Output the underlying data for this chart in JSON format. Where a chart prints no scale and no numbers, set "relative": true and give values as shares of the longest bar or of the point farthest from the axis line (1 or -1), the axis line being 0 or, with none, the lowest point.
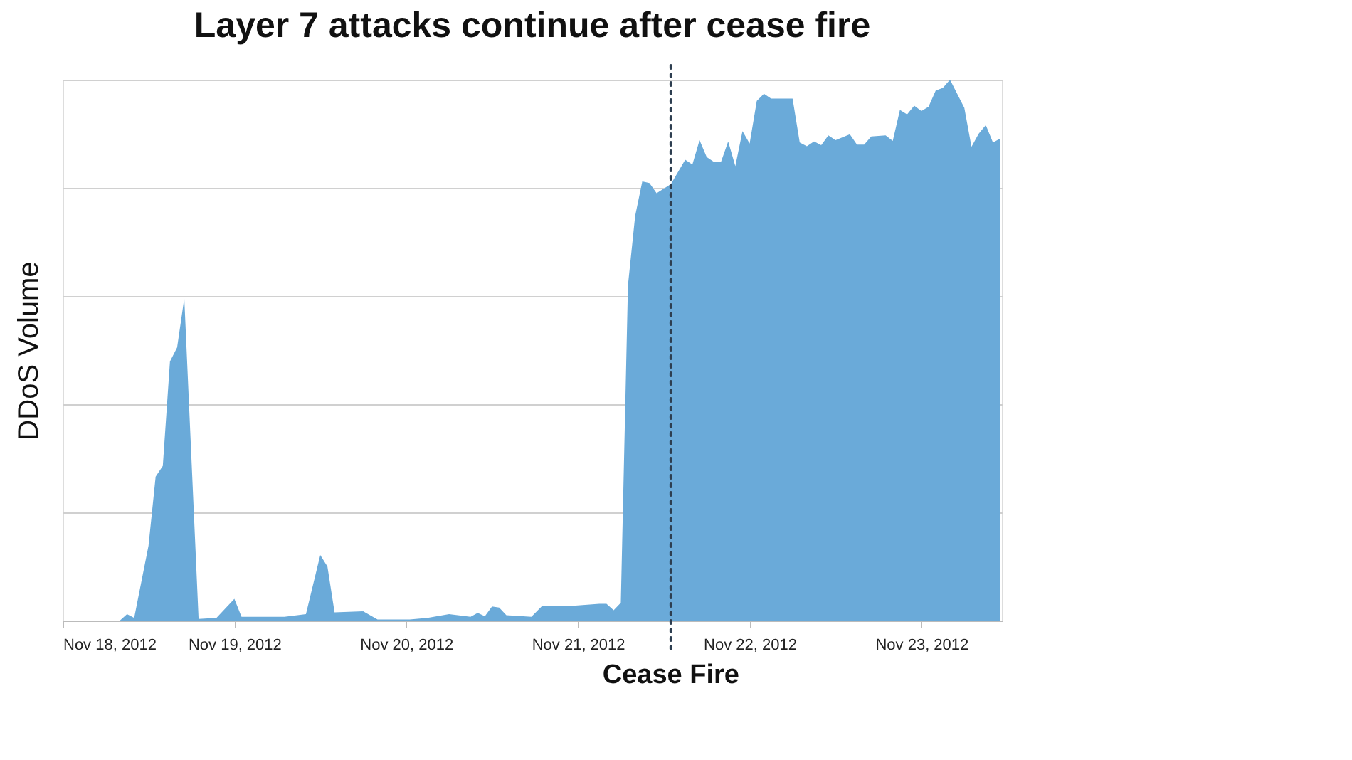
{
  "chart_data": {
    "type": "area",
    "title": "Layer 7 attacks continue after cease fire",
    "ylabel": "DDoS Volume",
    "relative": true,
    "grid": "y",
    "x": [
      "2012-11-18T00:00",
      "2012-11-18T08:00",
      "2012-11-18T09:00",
      "2012-11-18T10:00",
      "2012-11-18T12:00",
      "2012-11-18T13:00",
      "2012-11-18T14:00",
      "2012-11-18T15:00",
      "2012-11-18T16:00",
      "2012-11-18T17:00",
      "2012-11-18T19:00",
      "2012-11-18T21:30",
      "2012-11-19T00:00",
      "2012-11-19T01:00",
      "2012-11-19T07:00",
      "2012-11-19T10:00",
      "2012-11-19T12:00",
      "2012-11-19T13:00",
      "2012-11-19T14:00",
      "2012-11-19T18:00",
      "2012-11-19T20:00",
      "2012-11-20T00:30",
      "2012-11-20T03:00",
      "2012-11-20T06:00",
      "2012-11-20T09:00",
      "2012-11-20T10:00",
      "2012-11-20T11:00",
      "2012-11-20T12:00",
      "2012-11-20T13:00",
      "2012-11-20T14:00",
      "2012-11-20T17:30",
      "2012-11-20T19:00",
      "2012-11-20T23:00",
      "2012-11-21T03:00",
      "2012-11-21T04:00",
      "2012-11-21T05:00",
      "2012-11-21T06:00",
      "2012-11-21T07:00",
      "2012-11-21T08:00",
      "2012-11-21T09:00",
      "2012-11-21T10:00",
      "2012-11-21T11:00",
      "2012-11-21T13:00",
      "2012-11-21T15:00",
      "2012-11-21T16:00",
      "2012-11-21T17:00",
      "2012-11-21T18:00",
      "2012-11-21T19:00",
      "2012-11-21T20:00",
      "2012-11-21T21:00",
      "2012-11-21T22:00",
      "2012-11-21T23:00",
      "2012-11-22T00:00",
      "2012-11-22T01:00",
      "2012-11-22T02:00",
      "2012-11-22T03:00",
      "2012-11-22T06:00",
      "2012-11-22T07:00",
      "2012-11-22T08:00",
      "2012-11-22T09:00",
      "2012-11-22T10:00",
      "2012-11-22T11:00",
      "2012-11-22T12:00",
      "2012-11-22T14:00",
      "2012-11-22T15:00",
      "2012-11-22T16:00",
      "2012-11-22T17:00",
      "2012-11-22T19:00",
      "2012-11-22T20:00",
      "2012-11-22T21:00",
      "2012-11-22T22:00",
      "2012-11-22T23:00",
      "2012-11-23T00:00",
      "2012-11-23T01:00",
      "2012-11-23T02:00",
      "2012-11-23T03:00",
      "2012-11-23T04:00",
      "2012-11-23T06:00",
      "2012-11-23T07:00",
      "2012-11-23T08:00",
      "2012-11-23T09:00",
      "2012-11-23T10:00",
      "2012-11-23T11:00"
    ],
    "series": [
      {
        "color": "#6aaad9",
        "values": [
          0,
          0,
          0.012,
          0.005,
          0.138,
          0.266,
          0.286,
          0.479,
          0.505,
          0.596,
          0.003,
          0.005,
          0.04,
          0.007,
          0.007,
          0.012,
          0.121,
          0.1,
          0.015,
          0.017,
          0.002,
          0.002,
          0.005,
          0.012,
          0.007,
          0.014,
          0.008,
          0.026,
          0.024,
          0.01,
          0.007,
          0.027,
          0.027,
          0.031,
          0.031,
          0.019,
          0.033,
          0.62,
          0.748,
          0.812,
          0.809,
          0.79,
          0.807,
          0.852,
          0.843,
          0.888,
          0.857,
          0.848,
          0.848,
          0.886,
          0.84,
          0.905,
          0.882,
          0.961,
          0.974,
          0.965,
          0.965,
          0.884,
          0.877,
          0.886,
          0.879,
          0.897,
          0.888,
          0.899,
          0.88,
          0.88,
          0.895,
          0.897,
          0.887,
          0.944,
          0.936,
          0.952,
          0.942,
          0.95,
          0.98,
          0.985,
          1,
          0.948,
          0.876,
          0.9,
          0.916,
          0.884,
          0.891
        ]
      }
    ],
    "xlim": [
      "2012-11-18T00:00",
      "2012-11-23T11:15"
    ],
    "xticks": [
      {
        "value": "2012-11-18T00:00",
        "label": "Nov 18, 2012"
      },
      {
        "value": "2012-11-19T00:00",
        "label": "Nov 19, 2012"
      },
      {
        "value": "2012-11-20T00:00",
        "label": "Nov 20, 2012"
      },
      {
        "value": "2012-11-21T00:00",
        "label": "Nov 21, 2012"
      },
      {
        "value": "2012-11-22T00:00",
        "label": "Nov 22, 2012"
      },
      {
        "value": "2012-11-23T00:00",
        "label": "Nov 23, 2012"
      }
    ],
    "ref_lines": [
      {
        "axis": "x",
        "value": "2012-11-21T13:00",
        "label": "Cease Fire",
        "line_style": "dotted",
        "color": "#2d3e50"
      }
    ]
  }
}
